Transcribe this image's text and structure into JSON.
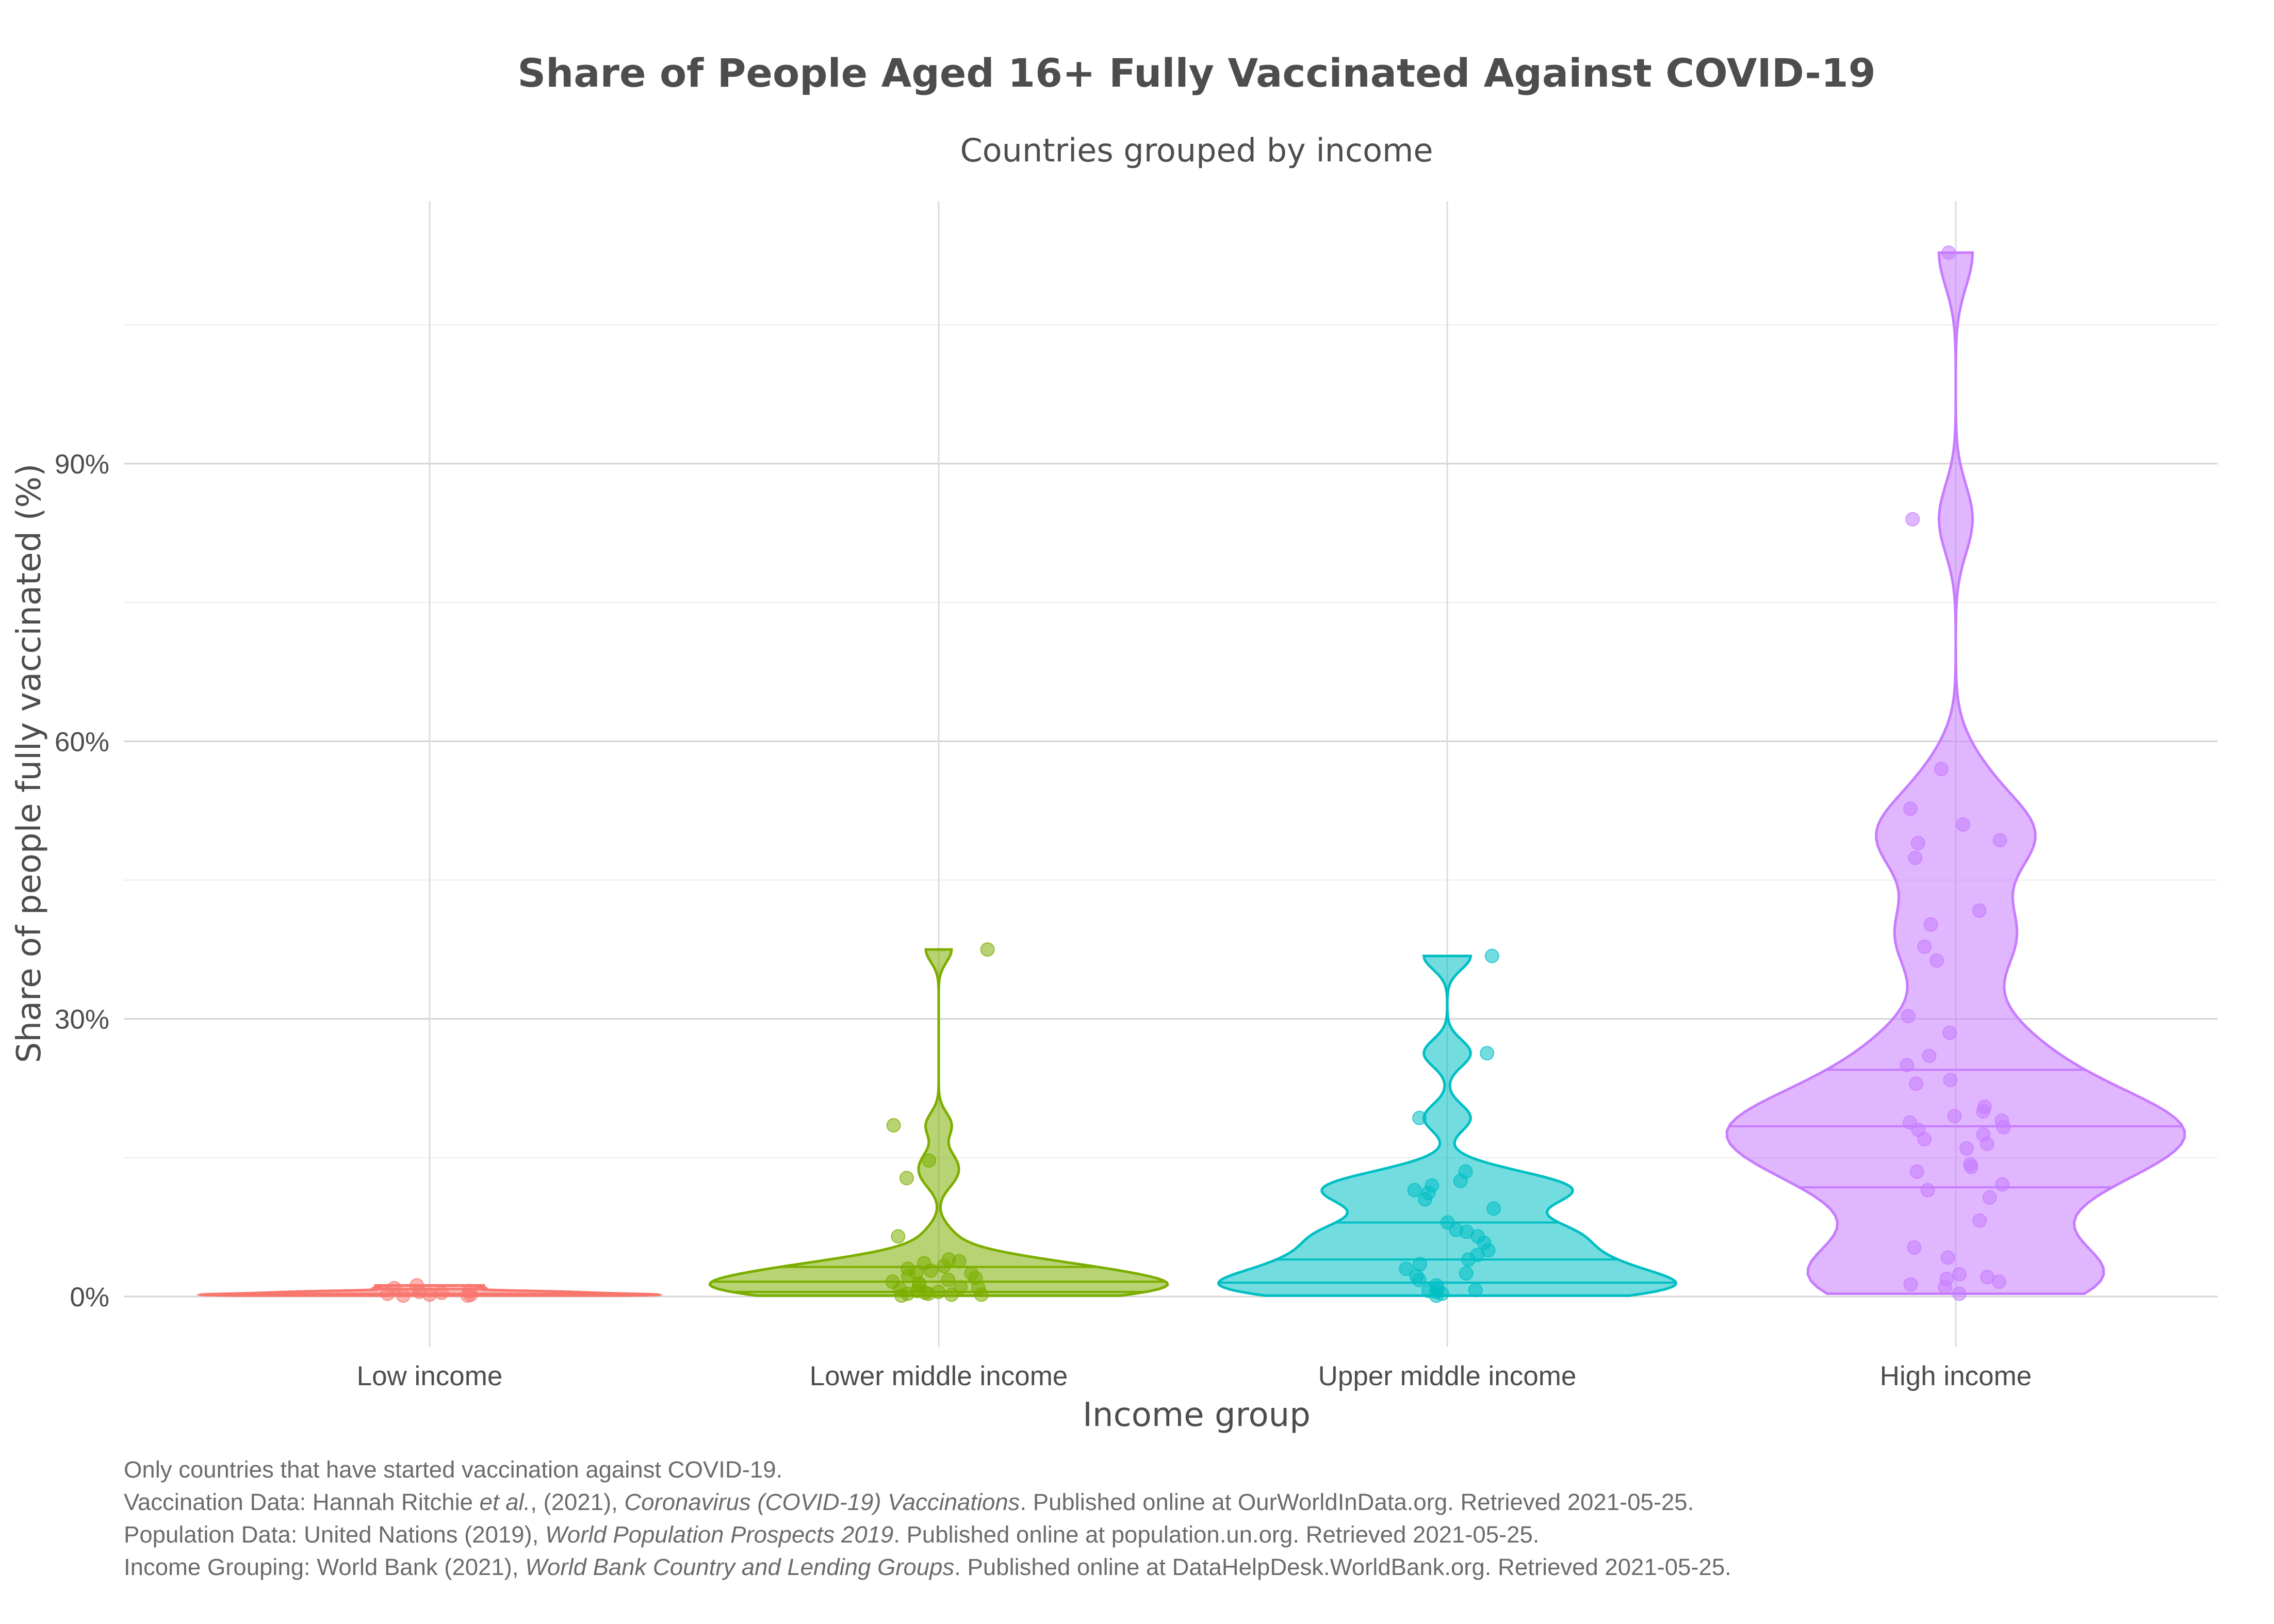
{
  "chart_data": {
    "type": "violin",
    "title": "Share of People Aged 16+ Fully Vaccinated Against COVID-19",
    "subtitle": "Countries grouped by income",
    "xlabel": "Income group",
    "ylabel": "Share of people fully vaccinated (%)",
    "ylim": [
      -6,
      120
    ],
    "yticks": [
      0,
      30,
      60,
      90
    ],
    "ytick_labels": [
      "0%",
      "30%",
      "60%",
      "90%"
    ],
    "grid": true,
    "legend": "none",
    "categories": [
      "Low income",
      "Lower middle income",
      "Upper middle income",
      "High income"
    ],
    "series": [
      {
        "category": "Low income",
        "color": "#F8766D",
        "points": [
          0.1,
          0.2,
          0.3,
          0.5,
          0.6,
          0.9,
          1.2,
          0.2,
          0.4,
          0.1
        ],
        "quantiles": [
          0.2,
          0.3,
          0.8
        ]
      },
      {
        "category": "Lower middle income",
        "color": "#7CAE00",
        "points": [
          0.1,
          0.2,
          0.3,
          0.3,
          0.5,
          0.6,
          0.8,
          1.0,
          1.2,
          1.4,
          1.6,
          2.0,
          2.2,
          2.5,
          2.8,
          3.0,
          3.3,
          3.6,
          3.8,
          4.0,
          6.5,
          12.8,
          14.7,
          18.5,
          37.5,
          0.4,
          0.2,
          1.8,
          0.9,
          2.6
        ],
        "quantiles": [
          0.5,
          1.6,
          3.2
        ]
      },
      {
        "category": "Upper middle income",
        "color": "#00BFC4",
        "points": [
          0.1,
          0.3,
          0.5,
          0.7,
          0.9,
          1.2,
          1.8,
          2.2,
          2.5,
          3.0,
          3.5,
          4.0,
          4.5,
          5.0,
          5.8,
          6.5,
          7.0,
          7.2,
          8.0,
          9.5,
          10.5,
          11.2,
          11.5,
          12.0,
          12.5,
          13.5,
          19.3,
          26.3,
          36.8,
          0.6
        ],
        "quantiles": [
          1.5,
          4.0,
          8.0
        ]
      },
      {
        "category": "High income",
        "color": "#C77CFF",
        "points": [
          0.3,
          1.0,
          1.3,
          1.6,
          1.9,
          2.1,
          2.4,
          4.2,
          5.3,
          8.2,
          10.7,
          11.5,
          12.1,
          13.5,
          14.0,
          14.3,
          16.0,
          16.5,
          17.0,
          17.5,
          18.0,
          18.3,
          18.8,
          19.0,
          19.5,
          20.0,
          20.5,
          23.0,
          23.4,
          25.0,
          26.0,
          28.5,
          30.3,
          36.3,
          37.8,
          40.2,
          41.7,
          47.4,
          49.0,
          49.3,
          51.0,
          52.7,
          57.0,
          84.0,
          112.8
        ],
        "quantiles": [
          11.8,
          18.4,
          24.5
        ]
      }
    ]
  },
  "caption": {
    "line1": "Only countries that have started vaccination against COVID-19.",
    "line2_a": "Vaccination Data: Hannah Ritchie ",
    "line2_b": "et al.",
    "line2_c": ", (2021), ",
    "line2_d": "Coronavirus (COVID-19) Vaccinations",
    "line2_e": ". Published online at OurWorldInData.org. Retrieved 2021-05-25.",
    "line3_a": "Population Data: United Nations (2019), ",
    "line3_b": "World Population Prospects 2019",
    "line3_c": ". Published online at population.un.org. Retrieved 2021-05-25.",
    "line4_a": "Income Grouping: World Bank (2021), ",
    "line4_b": "World Bank Country and Lending Groups",
    "line4_c": ". Published online at DataHelpDesk.WorldBank.org. Retrieved 2021-05-25."
  }
}
